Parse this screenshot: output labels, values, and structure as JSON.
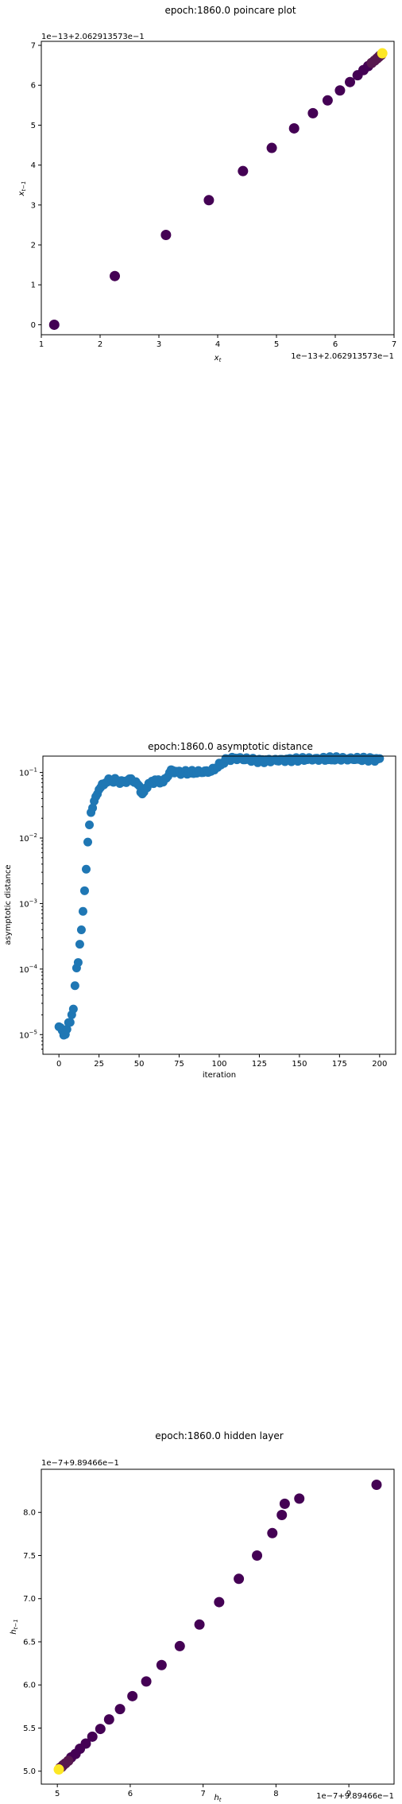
{
  "chart_data": [
    {
      "type": "scatter",
      "title": "epoch:1860.0 poincare plot",
      "xlabel": "x_t",
      "ylabel": "x_{t-1}",
      "x_offset_text": "1e−13+2.062913573e−1",
      "y_offset_text": "1e−13+2.062913573e−1",
      "xlim": [
        1.0,
        7.0
      ],
      "ylim": [
        -0.25,
        7.1
      ],
      "xticks": [
        1,
        2,
        3,
        4,
        5,
        6,
        7
      ],
      "yticks": [
        0,
        1,
        2,
        3,
        4,
        5,
        6,
        7
      ],
      "colormap": "viridis",
      "point_color_low": "#440154",
      "point_color_high": "#fde725",
      "points": [
        {
          "x": 1.22,
          "y": 0.0,
          "c": 0
        },
        {
          "x": 2.25,
          "y": 1.22,
          "c": 0
        },
        {
          "x": 3.12,
          "y": 2.25,
          "c": 0
        },
        {
          "x": 3.85,
          "y": 3.12,
          "c": 0
        },
        {
          "x": 4.43,
          "y": 3.85,
          "c": 0
        },
        {
          "x": 4.92,
          "y": 4.43,
          "c": 0
        },
        {
          "x": 5.3,
          "y": 4.92,
          "c": 0
        },
        {
          "x": 5.62,
          "y": 5.3,
          "c": 0
        },
        {
          "x": 5.87,
          "y": 5.62,
          "c": 0
        },
        {
          "x": 6.08,
          "y": 5.87,
          "c": 0
        },
        {
          "x": 6.25,
          "y": 6.08,
          "c": 0
        },
        {
          "x": 6.38,
          "y": 6.25,
          "c": 0
        },
        {
          "x": 6.48,
          "y": 6.38,
          "c": 0
        },
        {
          "x": 6.56,
          "y": 6.48,
          "c": 0
        },
        {
          "x": 6.62,
          "y": 6.56,
          "c": 0.1
        },
        {
          "x": 6.67,
          "y": 6.62,
          "c": 0.1
        },
        {
          "x": 6.71,
          "y": 6.67,
          "c": 0.1
        },
        {
          "x": 6.74,
          "y": 6.71,
          "c": 0.1
        },
        {
          "x": 6.76,
          "y": 6.74,
          "c": 0.1
        },
        {
          "x": 6.78,
          "y": 6.76,
          "c": 0.1
        },
        {
          "x": 6.8,
          "y": 6.8,
          "c": 1
        }
      ]
    },
    {
      "type": "scatter",
      "title": "epoch:1860.0 asymptotic distance",
      "xlabel": "iteration",
      "ylabel": "asymptotic distance",
      "yscale": "log",
      "xlim": [
        -10,
        210
      ],
      "ylim_log10": [
        -5.3,
        -0.75
      ],
      "xticks": [
        0,
        25,
        50,
        75,
        100,
        125,
        150,
        175,
        200
      ],
      "yticks_exp": [
        -5,
        -4,
        -3,
        -2,
        -1
      ],
      "point_color": "#1f77b4",
      "anchors": [
        [
          0,
          -4.88
        ],
        [
          2,
          -4.95
        ],
        [
          4,
          -5.0
        ],
        [
          6,
          -4.85
        ],
        [
          8,
          -4.7
        ],
        [
          9,
          -4.6
        ],
        [
          10,
          -4.3
        ],
        [
          11,
          -3.95
        ],
        [
          12,
          -3.9
        ],
        [
          13,
          -3.6
        ],
        [
          14,
          -3.45
        ],
        [
          15,
          -3.1
        ],
        [
          16,
          -2.8
        ],
        [
          17,
          -2.45
        ],
        [
          18,
          -2.1
        ],
        [
          19,
          -1.8
        ],
        [
          20,
          -1.6
        ],
        [
          22,
          -1.45
        ],
        [
          25,
          -1.25
        ],
        [
          30,
          -1.13
        ],
        [
          35,
          -1.12
        ],
        [
          40,
          -1.15
        ],
        [
          45,
          -1.1
        ],
        [
          50,
          -1.2
        ],
        [
          52,
          -1.35
        ],
        [
          55,
          -1.2
        ],
        [
          60,
          -1.12
        ],
        [
          65,
          -1.15
        ],
        [
          70,
          -0.97
        ],
        [
          75,
          -1.0
        ],
        [
          85,
          -1.0
        ],
        [
          95,
          -0.98
        ],
        [
          105,
          -0.8
        ],
        [
          110,
          -0.78
        ],
        [
          125,
          -0.82
        ],
        [
          150,
          -0.8
        ],
        [
          175,
          -0.79
        ],
        [
          200,
          -0.8
        ]
      ]
    },
    {
      "type": "scatter",
      "title": "epoch:1860.0 hidden layer",
      "xlabel": "h_t",
      "ylabel": "h_{t-1}",
      "x_offset_text": "1e−7+9.89466e−1",
      "y_offset_text": "1e−7+9.89466e−1",
      "xlim": [
        4.78,
        9.62
      ],
      "ylim": [
        4.85,
        8.5
      ],
      "xticks": [
        5,
        6,
        7,
        8,
        9
      ],
      "yticks": [
        5.0,
        5.5,
        6.0,
        6.5,
        7.0,
        7.5,
        8.0
      ],
      "colormap": "viridis",
      "point_color_low": "#440154",
      "point_color_high": "#fde725",
      "points": [
        {
          "x": 9.38,
          "y": 8.32,
          "c": 0
        },
        {
          "x": 8.32,
          "y": 8.16,
          "c": 0
        },
        {
          "x": 8.12,
          "y": 8.1,
          "c": 0
        },
        {
          "x": 8.08,
          "y": 7.97,
          "c": 0
        },
        {
          "x": 7.95,
          "y": 7.76,
          "c": 0
        },
        {
          "x": 7.74,
          "y": 7.5,
          "c": 0
        },
        {
          "x": 7.49,
          "y": 7.23,
          "c": 0
        },
        {
          "x": 7.22,
          "y": 6.96,
          "c": 0
        },
        {
          "x": 6.95,
          "y": 6.7,
          "c": 0
        },
        {
          "x": 6.68,
          "y": 6.45,
          "c": 0
        },
        {
          "x": 6.43,
          "y": 6.23,
          "c": 0
        },
        {
          "x": 6.22,
          "y": 6.04,
          "c": 0
        },
        {
          "x": 6.03,
          "y": 5.87,
          "c": 0
        },
        {
          "x": 5.86,
          "y": 5.72,
          "c": 0
        },
        {
          "x": 5.71,
          "y": 5.6,
          "c": 0
        },
        {
          "x": 5.59,
          "y": 5.49,
          "c": 0
        },
        {
          "x": 5.48,
          "y": 5.4,
          "c": 0
        },
        {
          "x": 5.39,
          "y": 5.32,
          "c": 0
        },
        {
          "x": 5.31,
          "y": 5.26,
          "c": 0
        },
        {
          "x": 5.25,
          "y": 5.2,
          "c": 0
        },
        {
          "x": 5.19,
          "y": 5.16,
          "c": 0
        },
        {
          "x": 5.15,
          "y": 5.12,
          "c": 0.1
        },
        {
          "x": 5.11,
          "y": 5.09,
          "c": 0.1
        },
        {
          "x": 5.08,
          "y": 5.07,
          "c": 0.1
        },
        {
          "x": 5.06,
          "y": 5.05,
          "c": 0.1
        },
        {
          "x": 5.04,
          "y": 5.04,
          "c": 0.1
        },
        {
          "x": 5.02,
          "y": 5.02,
          "c": 1
        }
      ]
    }
  ]
}
